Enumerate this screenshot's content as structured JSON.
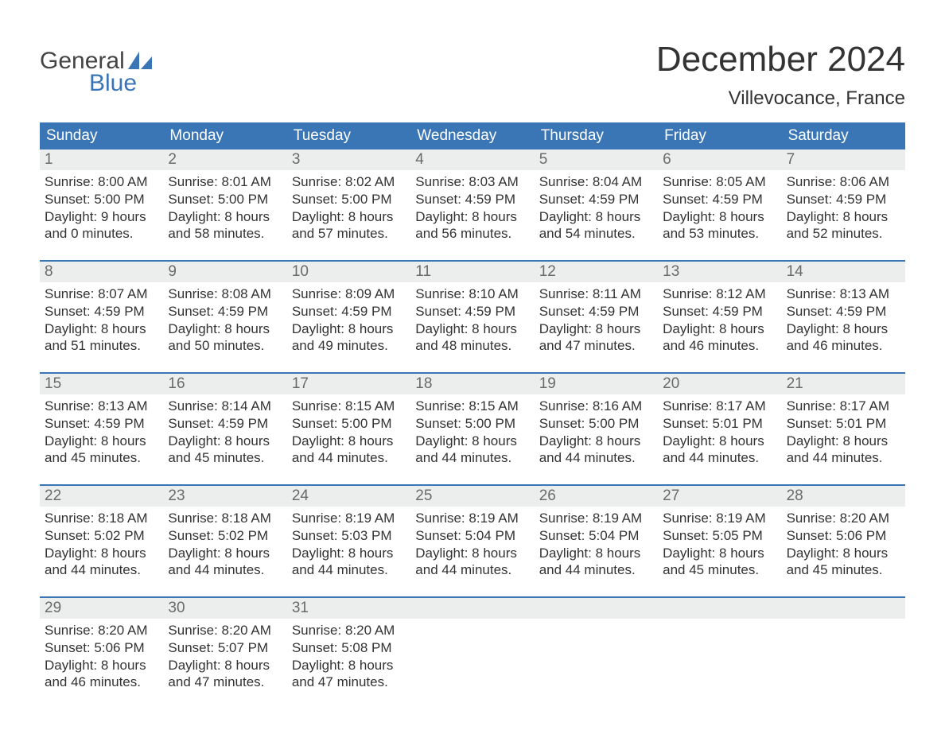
{
  "logo": {
    "word1": "General",
    "word2": "Blue",
    "accent_color": "#3a76b5",
    "word1_color": "#444444"
  },
  "title": "December 2024",
  "location": "Villevocance, France",
  "colors": {
    "header_bg": "#3a76b5",
    "header_text": "#ffffff",
    "daynum_bg": "#eceded",
    "daynum_text": "#6a6a6a",
    "body_text": "#333333",
    "week_border": "#3a76b5",
    "page_bg": "#ffffff"
  },
  "typography": {
    "title_fontsize": 44,
    "location_fontsize": 24,
    "header_fontsize": 19,
    "daynum_fontsize": 19,
    "cell_fontsize": 17
  },
  "day_labels": [
    "Sunday",
    "Monday",
    "Tuesday",
    "Wednesday",
    "Thursday",
    "Friday",
    "Saturday"
  ],
  "labels": {
    "sunrise": "Sunrise:",
    "sunset": "Sunset:",
    "daylight": "Daylight:"
  },
  "weeks": [
    [
      {
        "n": "1",
        "sunrise": "8:00 AM",
        "sunset": "5:00 PM",
        "dl1": "9 hours",
        "dl2": "and 0 minutes."
      },
      {
        "n": "2",
        "sunrise": "8:01 AM",
        "sunset": "5:00 PM",
        "dl1": "8 hours",
        "dl2": "and 58 minutes."
      },
      {
        "n": "3",
        "sunrise": "8:02 AM",
        "sunset": "5:00 PM",
        "dl1": "8 hours",
        "dl2": "and 57 minutes."
      },
      {
        "n": "4",
        "sunrise": "8:03 AM",
        "sunset": "4:59 PM",
        "dl1": "8 hours",
        "dl2": "and 56 minutes."
      },
      {
        "n": "5",
        "sunrise": "8:04 AM",
        "sunset": "4:59 PM",
        "dl1": "8 hours",
        "dl2": "and 54 minutes."
      },
      {
        "n": "6",
        "sunrise": "8:05 AM",
        "sunset": "4:59 PM",
        "dl1": "8 hours",
        "dl2": "and 53 minutes."
      },
      {
        "n": "7",
        "sunrise": "8:06 AM",
        "sunset": "4:59 PM",
        "dl1": "8 hours",
        "dl2": "and 52 minutes."
      }
    ],
    [
      {
        "n": "8",
        "sunrise": "8:07 AM",
        "sunset": "4:59 PM",
        "dl1": "8 hours",
        "dl2": "and 51 minutes."
      },
      {
        "n": "9",
        "sunrise": "8:08 AM",
        "sunset": "4:59 PM",
        "dl1": "8 hours",
        "dl2": "and 50 minutes."
      },
      {
        "n": "10",
        "sunrise": "8:09 AM",
        "sunset": "4:59 PM",
        "dl1": "8 hours",
        "dl2": "and 49 minutes."
      },
      {
        "n": "11",
        "sunrise": "8:10 AM",
        "sunset": "4:59 PM",
        "dl1": "8 hours",
        "dl2": "and 48 minutes."
      },
      {
        "n": "12",
        "sunrise": "8:11 AM",
        "sunset": "4:59 PM",
        "dl1": "8 hours",
        "dl2": "and 47 minutes."
      },
      {
        "n": "13",
        "sunrise": "8:12 AM",
        "sunset": "4:59 PM",
        "dl1": "8 hours",
        "dl2": "and 46 minutes."
      },
      {
        "n": "14",
        "sunrise": "8:13 AM",
        "sunset": "4:59 PM",
        "dl1": "8 hours",
        "dl2": "and 46 minutes."
      }
    ],
    [
      {
        "n": "15",
        "sunrise": "8:13 AM",
        "sunset": "4:59 PM",
        "dl1": "8 hours",
        "dl2": "and 45 minutes."
      },
      {
        "n": "16",
        "sunrise": "8:14 AM",
        "sunset": "4:59 PM",
        "dl1": "8 hours",
        "dl2": "and 45 minutes."
      },
      {
        "n": "17",
        "sunrise": "8:15 AM",
        "sunset": "5:00 PM",
        "dl1": "8 hours",
        "dl2": "and 44 minutes."
      },
      {
        "n": "18",
        "sunrise": "8:15 AM",
        "sunset": "5:00 PM",
        "dl1": "8 hours",
        "dl2": "and 44 minutes."
      },
      {
        "n": "19",
        "sunrise": "8:16 AM",
        "sunset": "5:00 PM",
        "dl1": "8 hours",
        "dl2": "and 44 minutes."
      },
      {
        "n": "20",
        "sunrise": "8:17 AM",
        "sunset": "5:01 PM",
        "dl1": "8 hours",
        "dl2": "and 44 minutes."
      },
      {
        "n": "21",
        "sunrise": "8:17 AM",
        "sunset": "5:01 PM",
        "dl1": "8 hours",
        "dl2": "and 44 minutes."
      }
    ],
    [
      {
        "n": "22",
        "sunrise": "8:18 AM",
        "sunset": "5:02 PM",
        "dl1": "8 hours",
        "dl2": "and 44 minutes."
      },
      {
        "n": "23",
        "sunrise": "8:18 AM",
        "sunset": "5:02 PM",
        "dl1": "8 hours",
        "dl2": "and 44 minutes."
      },
      {
        "n": "24",
        "sunrise": "8:19 AM",
        "sunset": "5:03 PM",
        "dl1": "8 hours",
        "dl2": "and 44 minutes."
      },
      {
        "n": "25",
        "sunrise": "8:19 AM",
        "sunset": "5:04 PM",
        "dl1": "8 hours",
        "dl2": "and 44 minutes."
      },
      {
        "n": "26",
        "sunrise": "8:19 AM",
        "sunset": "5:04 PM",
        "dl1": "8 hours",
        "dl2": "and 44 minutes."
      },
      {
        "n": "27",
        "sunrise": "8:19 AM",
        "sunset": "5:05 PM",
        "dl1": "8 hours",
        "dl2": "and 45 minutes."
      },
      {
        "n": "28",
        "sunrise": "8:20 AM",
        "sunset": "5:06 PM",
        "dl1": "8 hours",
        "dl2": "and 45 minutes."
      }
    ],
    [
      {
        "n": "29",
        "sunrise": "8:20 AM",
        "sunset": "5:06 PM",
        "dl1": "8 hours",
        "dl2": "and 46 minutes."
      },
      {
        "n": "30",
        "sunrise": "8:20 AM",
        "sunset": "5:07 PM",
        "dl1": "8 hours",
        "dl2": "and 47 minutes."
      },
      {
        "n": "31",
        "sunrise": "8:20 AM",
        "sunset": "5:08 PM",
        "dl1": "8 hours",
        "dl2": "and 47 minutes."
      },
      null,
      null,
      null,
      null
    ]
  ]
}
